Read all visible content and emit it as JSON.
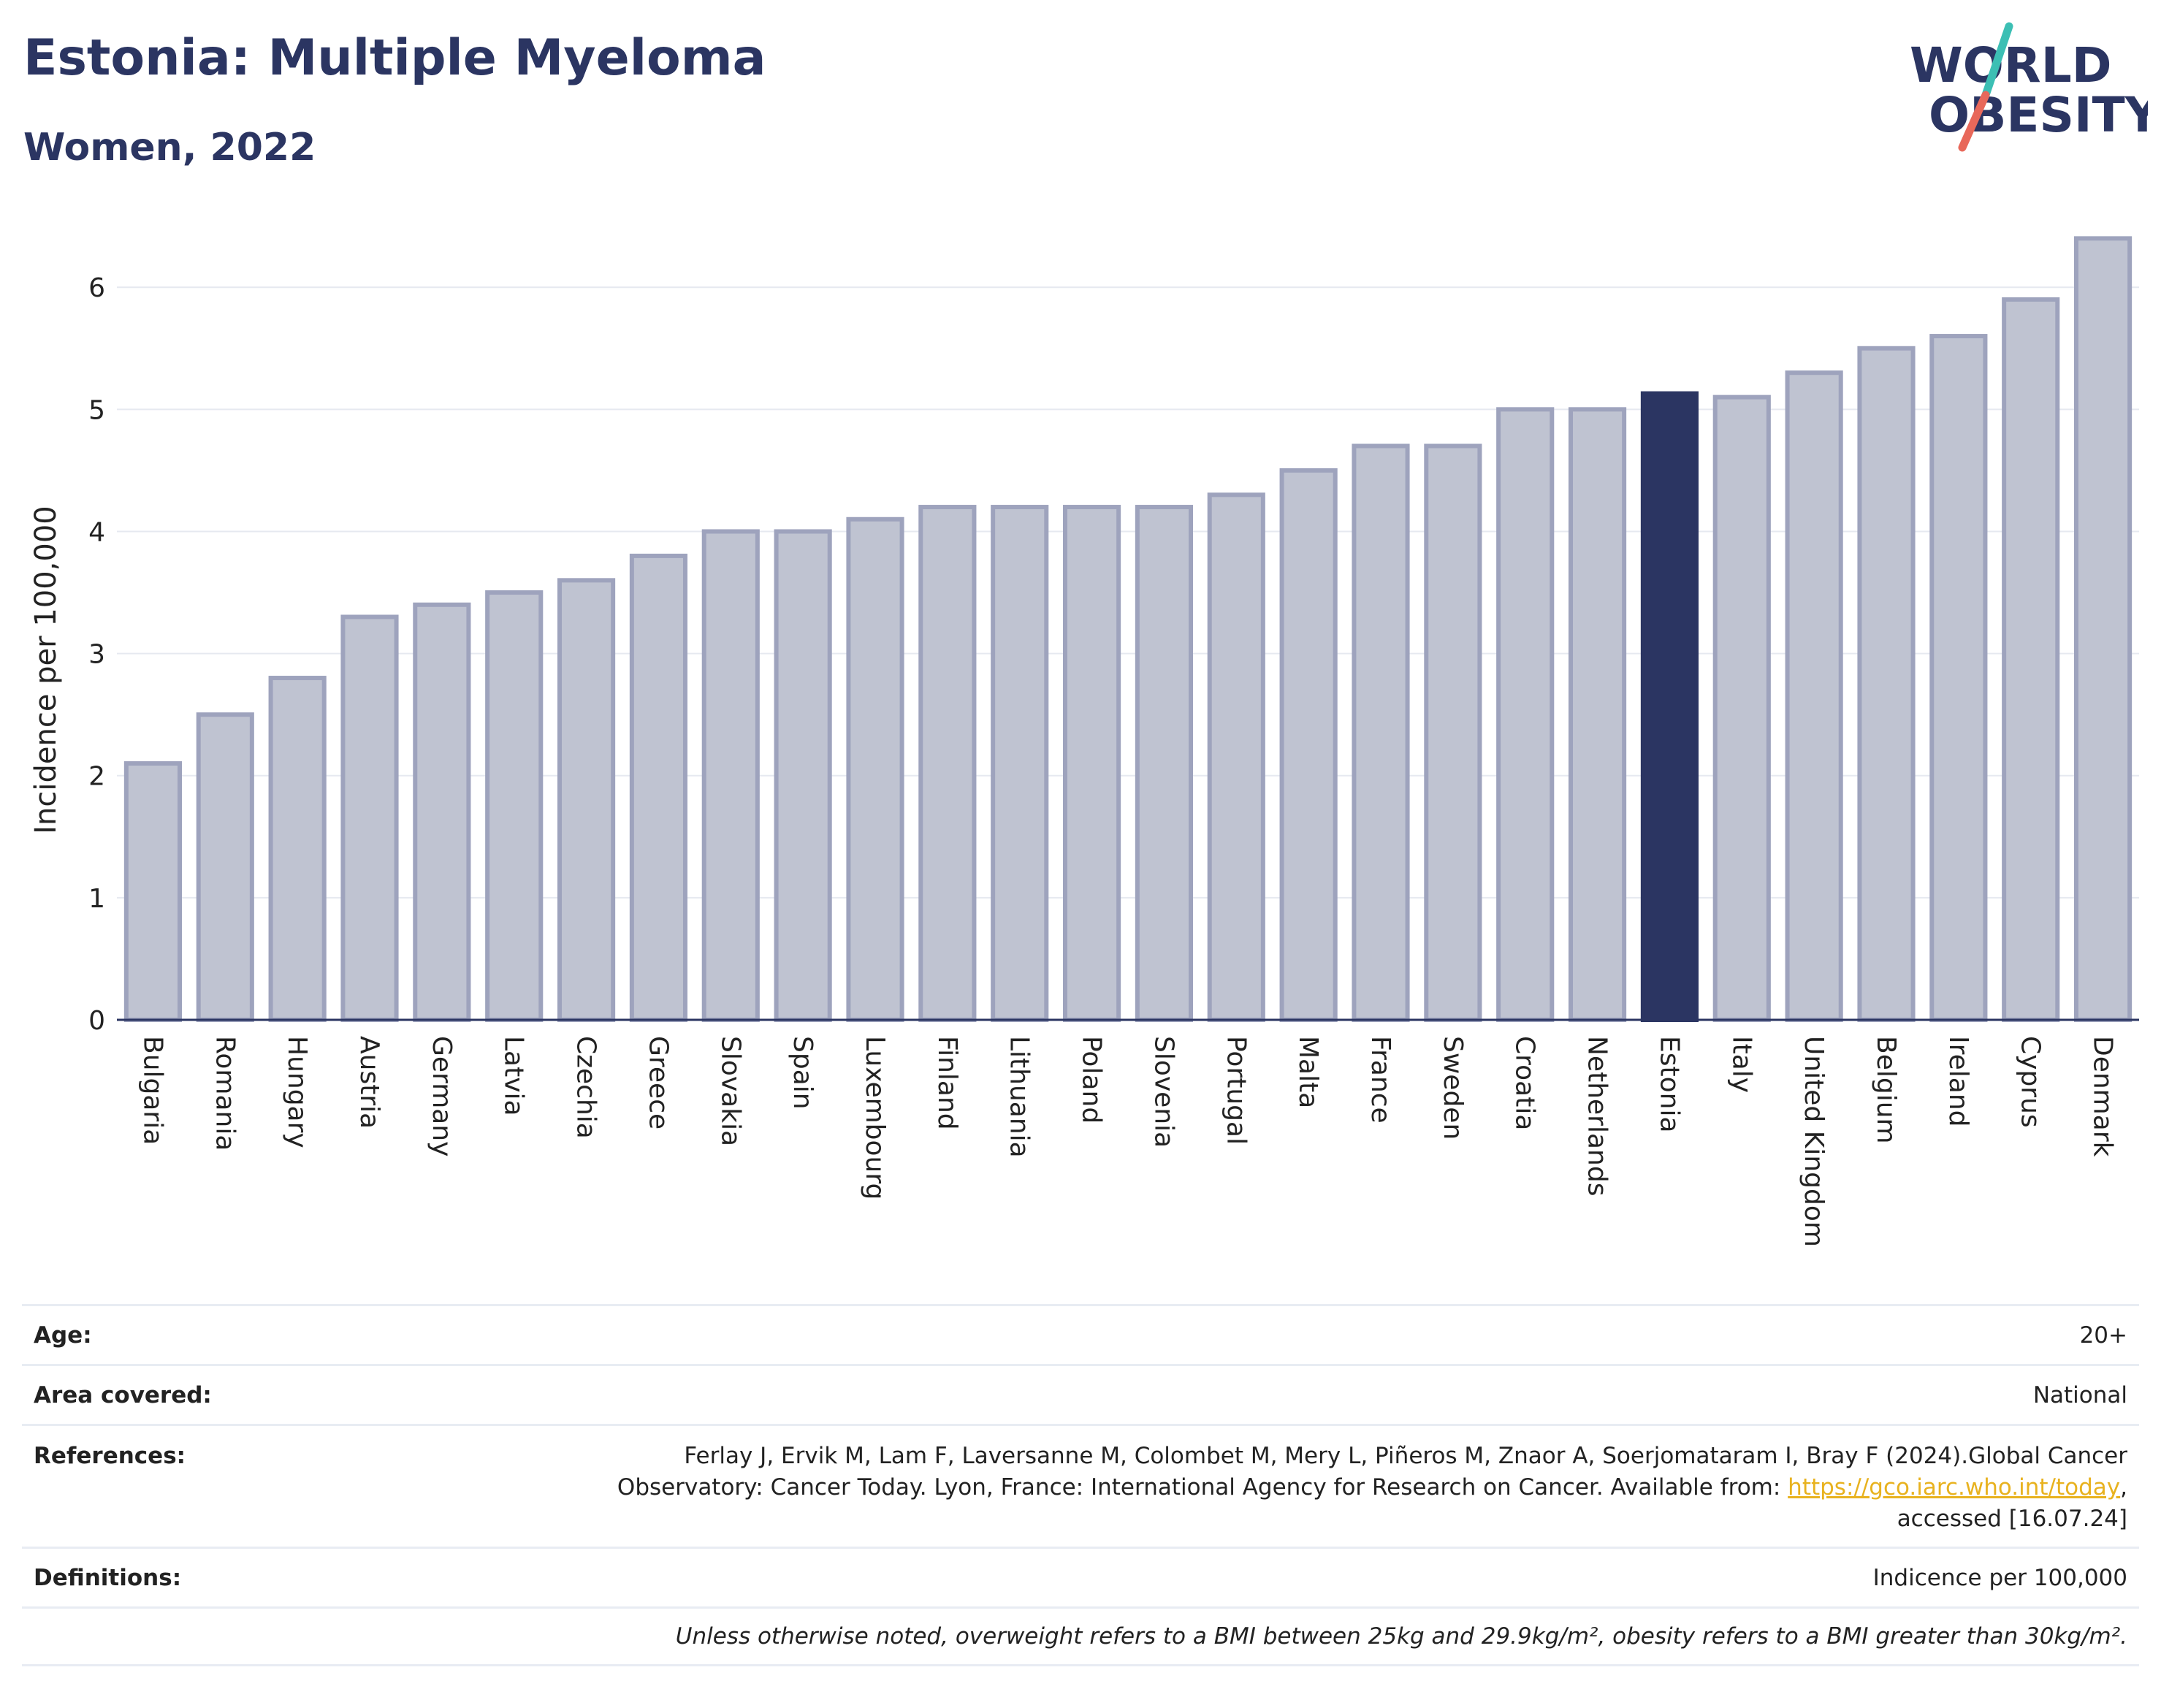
{
  "header": {
    "title": "Estonia: Multiple Myeloma",
    "subtitle": "Women, 2022",
    "logo_line1": "WORLD",
    "logo_line2": "OBESITY"
  },
  "colors": {
    "highlight": "#2b3562",
    "bar_fill": "#bfc3d1",
    "bar_edge": "#9ea3bd",
    "logo_teal": "#3cbfb4",
    "logo_coral": "#e8685a",
    "link": "#e8b21f"
  },
  "chart_data": {
    "type": "bar",
    "ylabel": "Incidence per 100,000",
    "ylim": [
      0,
      6.45
    ],
    "yticks": [
      0,
      1,
      2,
      3,
      4,
      5,
      6
    ],
    "grid": true,
    "highlight": "Estonia",
    "categories": [
      "Bulgaria",
      "Romania",
      "Hungary",
      "Austria",
      "Germany",
      "Latvia",
      "Czechia",
      "Greece",
      "Slovakia",
      "Spain",
      "Luxembourg",
      "Finland",
      "Lithuania",
      "Poland",
      "Slovenia",
      "Portugal",
      "Malta",
      "France",
      "Sweden",
      "Croatia",
      "Netherlands",
      "Estonia",
      "Italy",
      "United Kingdom",
      "Belgium",
      "Ireland",
      "Cyprus",
      "Denmark"
    ],
    "values": [
      2.1,
      2.5,
      2.8,
      3.3,
      3.4,
      3.5,
      3.6,
      3.8,
      4.0,
      4.0,
      4.1,
      4.2,
      4.2,
      4.2,
      4.2,
      4.3,
      4.5,
      4.7,
      4.7,
      5.0,
      5.0,
      5.13,
      5.1,
      5.3,
      5.5,
      5.6,
      5.9,
      6.4
    ]
  },
  "info": {
    "age_label": "Age:",
    "age_value": "20+",
    "area_label": "Area covered:",
    "area_value": "National",
    "references_label": "References:",
    "references_line1": "Ferlay J, Ervik M, Lam F, Laversanne M, Colombet M, Mery L, Piñeros M, Znaor A, Soerjomataram I, Bray F (2024).Global Cancer",
    "references_line2_pre": "Observatory: Cancer Today. Lyon, France: International Agency for Research on Cancer. Available from: ",
    "references_link": "https://gco.iarc.who.int/today",
    "references_line2_post": ",",
    "references_line3": "accessed [16.07.24]",
    "definitions_label": "Definitions:",
    "definitions_value": "Indicence per 100,000",
    "note": "Unless otherwise noted, overweight refers to a BMI between 25kg and 29.9kg/m², obesity refers to a BMI greater than 30kg/m²."
  }
}
